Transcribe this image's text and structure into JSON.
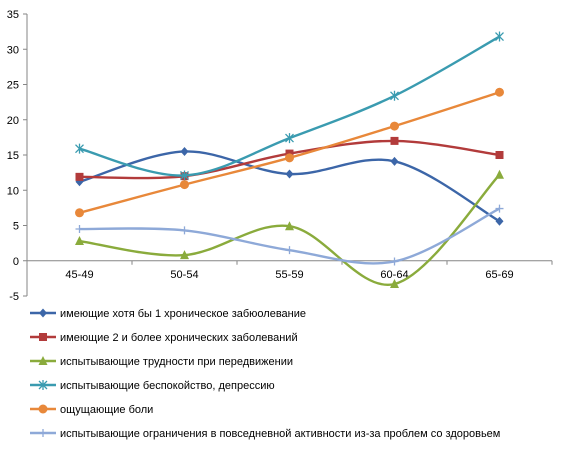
{
  "chart_data": {
    "type": "line",
    "categories": [
      "45-49",
      "50-54",
      "55-59",
      "60-64",
      "65-69"
    ],
    "ylim": [
      -5,
      35
    ],
    "yticks": [
      -5,
      0,
      5,
      10,
      15,
      20,
      25,
      30,
      35
    ],
    "grid": false,
    "smooth": true,
    "legend_position": "bottom",
    "series": [
      {
        "name": "имеющие хотя бы 1 хроническое забюолевание",
        "color": "#3C66A8",
        "marker": "diamond",
        "values": [
          11.2,
          15.5,
          12.3,
          14.1,
          5.6
        ]
      },
      {
        "name": "имеющие 2 и более хронических заболеваний",
        "color": "#B23B3B",
        "marker": "square",
        "values": [
          11.9,
          12.0,
          15.2,
          17.0,
          15.0
        ]
      },
      {
        "name": "испытывающие трудности при передвижении",
        "color": "#8AAB3C",
        "marker": "triangle",
        "values": [
          2.8,
          0.8,
          4.9,
          -3.3,
          12.2
        ]
      },
      {
        "name": "испытывающие беспокойство, депрессию",
        "color": "#3A9BB0",
        "marker": "star",
        "values": [
          15.9,
          12.1,
          17.4,
          23.4,
          31.8
        ]
      },
      {
        "name": "ощущающие боли",
        "color": "#E8883A",
        "marker": "circle",
        "values": [
          6.8,
          10.8,
          14.6,
          19.1,
          23.9
        ]
      },
      {
        "name": "испытывающие ограничения в повседневной активности из-за проблем со здоровьем",
        "color": "#8EA9D8",
        "marker": "plus",
        "values": [
          4.5,
          4.3,
          1.5,
          -0.1,
          7.4
        ]
      }
    ]
  }
}
